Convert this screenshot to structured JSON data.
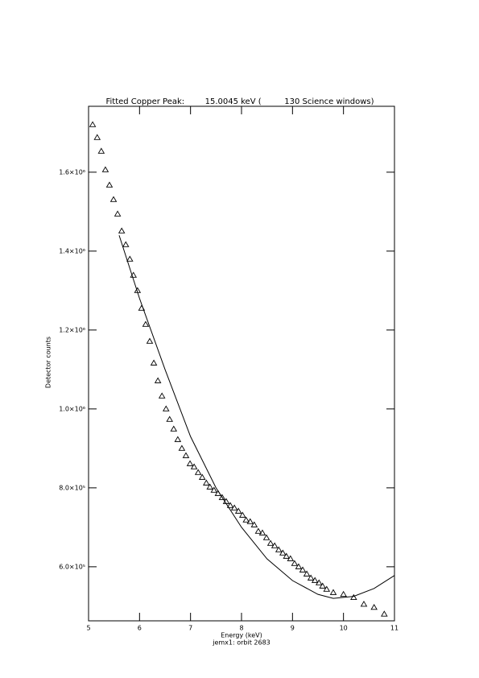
{
  "chart_data": {
    "type": "scatter",
    "title": "Fitted Copper Peak:        15.0045 keV (         130 Science windows)",
    "x_label": "Energy (keV)",
    "subtitle": "jemx1: orbit 2683",
    "y_label": "Detector counts",
    "xlim": [
      5,
      11
    ],
    "xticks": [
      5,
      6,
      7,
      8,
      9,
      10,
      11
    ],
    "ylim": [
      463000,
      1767000
    ],
    "yticks": [
      {
        "value": 600000,
        "label": "6.0×10⁵"
      },
      {
        "value": 800000,
        "label": "8.0×10⁵"
      },
      {
        "value": 1000000,
        "label": "1.0×10⁶"
      },
      {
        "value": 1200000,
        "label": "1.2×10⁶"
      },
      {
        "value": 1400000,
        "label": "1.4×10⁶"
      },
      {
        "value": 1600000,
        "label": "1.6×10⁶"
      }
    ],
    "series": [
      {
        "type": "scatter",
        "color": "#000000",
        "x": [
          5.08,
          5.17,
          5.25,
          5.33,
          5.41,
          5.49,
          5.57,
          5.65,
          5.73,
          5.81,
          5.88,
          5.96,
          6.04,
          6.12,
          6.2,
          6.28,
          6.36,
          6.44,
          6.52,
          6.59,
          6.67,
          6.75,
          6.83,
          6.91,
          6.99,
          7.07,
          7.15,
          7.23,
          7.31,
          7.38,
          7.46,
          7.54,
          7.62,
          7.7,
          7.78,
          7.86,
          7.94,
          8.02,
          8.09,
          8.17,
          8.25,
          8.33,
          8.41,
          8.49,
          8.57,
          8.65,
          8.73,
          8.81,
          8.88,
          8.96,
          9.04,
          9.12,
          9.2,
          9.28,
          9.36,
          9.44,
          9.52,
          9.59,
          9.67,
          9.8,
          10.0,
          10.2,
          10.4,
          10.6,
          10.8
        ],
        "values": [
          1720400,
          1687800,
          1653100,
          1606100,
          1567300,
          1530600,
          1493900,
          1451000,
          1416300,
          1379600,
          1338800,
          1300000,
          1255100,
          1214300,
          1171400,
          1116300,
          1071400,
          1032700,
          1000000,
          973500,
          949000,
          922400,
          900000,
          881600,
          861200,
          853100,
          838800,
          826500,
          812200,
          802000,
          793900,
          785700,
          775500,
          765300,
          755100,
          749000,
          740800,
          730600,
          718400,
          714300,
          706100,
          689800,
          685700,
          673500,
          659200,
          653100,
          642900,
          634700,
          626500,
          620400,
          608200,
          600000,
          591800,
          581600,
          571400,
          565300,
          559200,
          551000,
          542900,
          534700,
          530000,
          522000,
          505000,
          497000,
          480000
        ]
      },
      {
        "type": "line",
        "color": "#000000",
        "x": [
          5.6,
          6.0,
          6.5,
          7.0,
          7.5,
          8.0,
          8.5,
          9.0,
          9.5,
          9.8,
          10.2,
          10.6,
          11.0
        ],
        "values": [
          1440000,
          1280000,
          1100000,
          930000,
          800000,
          700000,
          620000,
          565000,
          530000,
          520000,
          525000,
          545000,
          578000
        ]
      }
    ]
  }
}
